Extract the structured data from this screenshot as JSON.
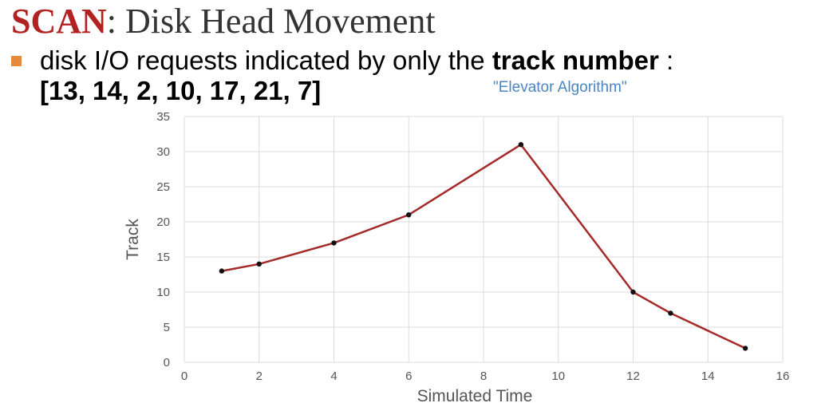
{
  "colors": {
    "title_accent": "#b22222",
    "bullet": "#e58a3a",
    "note": "#4a86c5",
    "series": "#a52a2a"
  },
  "slide": {
    "title_accent": "SCAN",
    "title_rest": ": Disk Head Movement",
    "bullet_icon": "square-bullet",
    "bullet_text_prefix": "disk I/O requests indicated by only the ",
    "bullet_text_bold": "track number",
    "bullet_text_suffix": " :",
    "requests_list": "[13, 14, 2, 10, 17, 21, 7]",
    "note": "\"Elevator Algorithm\""
  },
  "chart_data": {
    "type": "line",
    "xlabel": "Simulated Time",
    "ylabel": "Track",
    "xlim": [
      0,
      16
    ],
    "ylim": [
      0,
      35
    ],
    "xticks": [
      0,
      2,
      4,
      6,
      8,
      10,
      12,
      14,
      16
    ],
    "yticks": [
      0,
      5,
      10,
      15,
      20,
      25,
      30,
      35
    ],
    "grid": true,
    "series": [
      {
        "x": [
          1,
          2,
          4,
          6,
          9,
          12,
          13,
          15
        ],
        "y": [
          13,
          14,
          17,
          21,
          31,
          10,
          7,
          2
        ]
      }
    ]
  }
}
